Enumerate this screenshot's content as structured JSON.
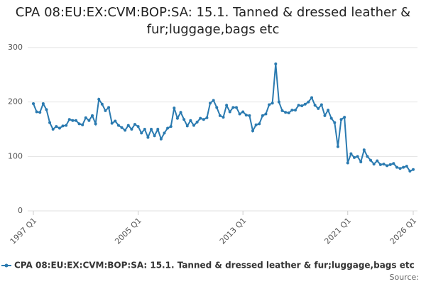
{
  "chart_data": {
    "type": "line",
    "title": "CPA 08:EU:EX:CVM:BOP:SA: 15.1. Tanned & dressed leather & fur;luggage,bags etc",
    "categories": [
      "1997 Q1",
      null,
      null,
      null,
      null,
      null,
      null,
      null,
      null,
      null,
      null,
      null,
      null,
      null,
      null,
      null,
      null,
      null,
      null,
      null,
      null,
      null,
      null,
      null,
      null,
      null,
      null,
      null,
      null,
      null,
      null,
      null,
      "2005 Q1",
      null,
      null,
      null,
      null,
      null,
      null,
      null,
      null,
      null,
      null,
      null,
      null,
      null,
      null,
      null,
      null,
      null,
      null,
      null,
      null,
      null,
      null,
      null,
      null,
      null,
      null,
      null,
      null,
      null,
      null,
      null,
      "2013 Q1",
      null,
      null,
      null,
      null,
      null,
      null,
      null,
      null,
      null,
      null,
      null,
      null,
      null,
      null,
      null,
      null,
      null,
      null,
      null,
      null,
      null,
      null,
      null,
      null,
      null,
      null,
      null,
      null,
      null,
      null,
      null,
      "2021 Q1",
      null,
      null,
      null,
      null,
      null,
      null,
      null,
      null,
      null,
      null,
      null,
      null,
      null,
      null,
      null,
      null,
      null,
      null,
      null,
      "2026 Q1"
    ],
    "series": [
      {
        "name": "CPA 08:EU:EX:CVM:BOP:SA: 15.1. Tanned & dressed leather & fur;luggage,bags etc",
        "color": "#2a7ab0",
        "values": [
          197,
          182,
          181,
          197,
          186,
          162,
          150,
          155,
          152,
          156,
          157,
          168,
          166,
          166,
          160,
          158,
          171,
          166,
          175,
          160,
          205,
          196,
          184,
          190,
          161,
          165,
          157,
          153,
          148,
          157,
          150,
          159,
          155,
          143,
          150,
          135,
          150,
          138,
          150,
          132,
          143,
          152,
          155,
          189,
          170,
          181,
          168,
          156,
          166,
          157,
          163,
          170,
          168,
          171,
          198,
          203,
          190,
          175,
          172,
          194,
          182,
          190,
          190,
          178,
          182,
          176,
          175,
          147,
          158,
          160,
          175,
          178,
          195,
          198,
          270,
          200,
          184,
          181,
          180,
          185,
          185,
          194,
          193,
          196,
          200,
          208,
          194,
          188,
          195,
          175,
          185,
          170,
          162,
          118,
          168,
          172,
          88,
          105,
          98,
          100,
          90,
          112,
          100,
          93,
          86,
          92,
          85,
          86,
          83,
          85,
          87,
          80,
          78,
          80,
          82,
          73,
          76
        ]
      }
    ],
    "ylim": [
      0,
      300
    ],
    "yticks": [
      0,
      100,
      200,
      300
    ],
    "grid": true,
    "legend": "bottom",
    "source": "Source:"
  }
}
